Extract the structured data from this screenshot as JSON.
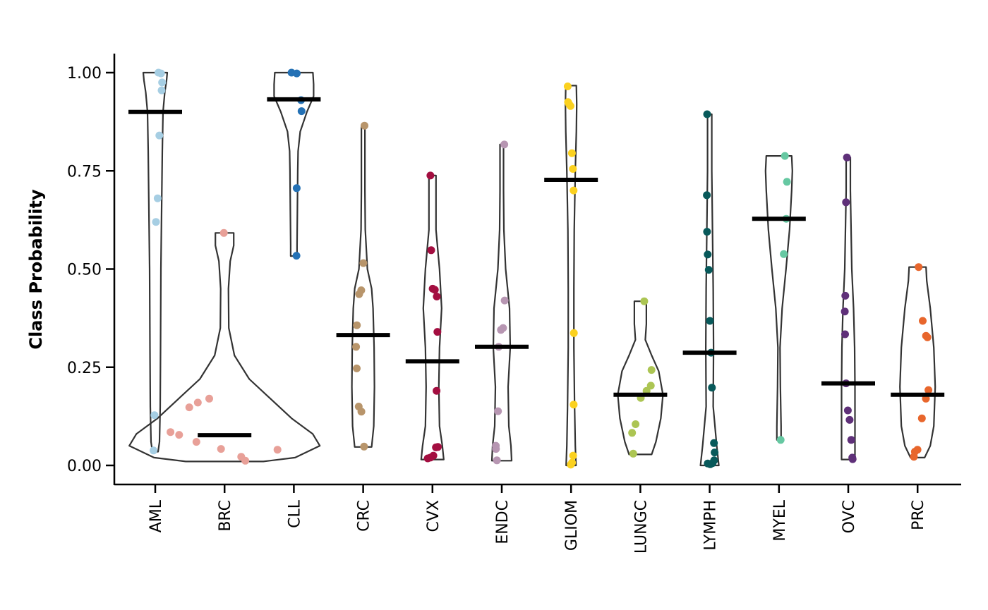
{
  "chart_data": {
    "type": "violin",
    "title": "",
    "xlabel": "",
    "ylabel": "Class Probability",
    "ylim": [
      0,
      1
    ],
    "yticks": [
      "0.00",
      "0.25",
      "0.50",
      "0.75",
      "1.00"
    ],
    "categories": [
      "AML",
      "BRC",
      "CLL",
      "CRC",
      "CVX",
      "ENDC",
      "GLIOM",
      "LUNGC",
      "LYMPH",
      "MYEL",
      "OVC",
      "PRC"
    ],
    "median_color": "#000000",
    "groups": [
      {
        "name": "AML",
        "color": "#a6cee3",
        "median": 0.9,
        "points": [
          1.0,
          0.998,
          0.975,
          0.955,
          0.84,
          0.68,
          0.62,
          0.128,
          0.038
        ],
        "violin": [
          [
            0.035,
            0.4
          ],
          [
            0.06,
            0.6
          ],
          [
            0.15,
            0.7
          ],
          [
            0.3,
            0.75
          ],
          [
            0.5,
            0.8
          ],
          [
            0.65,
            0.9
          ],
          [
            0.8,
            1.0
          ],
          [
            0.9,
            1.1
          ],
          [
            0.95,
            1.35
          ],
          [
            0.98,
            1.6
          ],
          [
            1.0,
            1.7
          ]
        ]
      },
      {
        "name": "BRC",
        "color": "#e8a098",
        "median": 0.077,
        "points": [
          0.592,
          0.17,
          0.16,
          0.148,
          0.085,
          0.078,
          0.06,
          0.042,
          0.022,
          0.012,
          0.04
        ],
        "violin": [
          [
            0.01,
            5.5
          ],
          [
            0.02,
            10
          ],
          [
            0.05,
            13.5
          ],
          [
            0.08,
            12.5
          ],
          [
            0.12,
            9.5
          ],
          [
            0.17,
            6.5
          ],
          [
            0.22,
            3.5
          ],
          [
            0.28,
            1.4
          ],
          [
            0.35,
            0.6
          ],
          [
            0.45,
            0.55
          ],
          [
            0.52,
            0.8
          ],
          [
            0.56,
            1.3
          ],
          [
            0.592,
            1.3
          ]
        ]
      },
      {
        "name": "CLL",
        "color": "#2471b5",
        "median": 0.932,
        "points": [
          1.0,
          0.998,
          0.93,
          0.902,
          0.706,
          0.534
        ],
        "violin": [
          [
            0.533,
            0.45
          ],
          [
            0.56,
            0.45
          ],
          [
            0.65,
            0.5
          ],
          [
            0.75,
            0.55
          ],
          [
            0.8,
            0.6
          ],
          [
            0.85,
            0.9
          ],
          [
            0.9,
            1.85
          ],
          [
            0.94,
            2.8
          ],
          [
            0.97,
            2.8
          ],
          [
            1.0,
            2.7
          ]
        ]
      },
      {
        "name": "CRC",
        "color": "#b8956b",
        "median": 0.332,
        "points": [
          0.865,
          0.515,
          0.446,
          0.436,
          0.357,
          0.302,
          0.247,
          0.15,
          0.137,
          0.048
        ],
        "violin": [
          [
            0.047,
            1.2
          ],
          [
            0.1,
            1.5
          ],
          [
            0.2,
            1.6
          ],
          [
            0.3,
            1.55
          ],
          [
            0.4,
            1.4
          ],
          [
            0.45,
            1.2
          ],
          [
            0.5,
            0.6
          ],
          [
            0.6,
            0.3
          ],
          [
            0.7,
            0.25
          ],
          [
            0.8,
            0.25
          ],
          [
            0.865,
            0.25
          ]
        ]
      },
      {
        "name": "CVX",
        "color": "#a30e40",
        "median": 0.265,
        "points": [
          0.738,
          0.548,
          0.45,
          0.447,
          0.43,
          0.34,
          0.19,
          0.047,
          0.046,
          0.025,
          0.02,
          0.018
        ],
        "violin": [
          [
            0.015,
            1.6
          ],
          [
            0.05,
            1.4
          ],
          [
            0.1,
            1.0
          ],
          [
            0.2,
            0.9
          ],
          [
            0.3,
            1.0
          ],
          [
            0.4,
            1.3
          ],
          [
            0.5,
            1.0
          ],
          [
            0.6,
            0.5
          ],
          [
            0.7,
            0.5
          ],
          [
            0.738,
            0.5
          ]
        ]
      },
      {
        "name": "ENDC",
        "color": "#b796b2",
        "median": 0.302,
        "points": [
          0.817,
          0.42,
          0.35,
          0.345,
          0.302,
          0.138,
          0.05,
          0.042,
          0.013
        ],
        "violin": [
          [
            0.012,
            1.4
          ],
          [
            0.05,
            1.3
          ],
          [
            0.1,
            1.0
          ],
          [
            0.2,
            0.9
          ],
          [
            0.3,
            1.2
          ],
          [
            0.4,
            1.1
          ],
          [
            0.5,
            0.55
          ],
          [
            0.6,
            0.3
          ],
          [
            0.7,
            0.25
          ],
          [
            0.817,
            0.25
          ]
        ]
      },
      {
        "name": "GLIOM",
        "color": "#fbd11f",
        "median": 0.727,
        "points": [
          0.965,
          0.925,
          0.92,
          0.915,
          0.795,
          0.755,
          0.7,
          0.337,
          0.155,
          0.025,
          0.007,
          0.002
        ],
        "violin": [
          [
            0.0,
            0.7
          ],
          [
            0.05,
            0.6
          ],
          [
            0.15,
            0.5
          ],
          [
            0.3,
            0.4
          ],
          [
            0.45,
            0.4
          ],
          [
            0.6,
            0.45
          ],
          [
            0.75,
            0.6
          ],
          [
            0.85,
            0.75
          ],
          [
            0.92,
            0.8
          ],
          [
            0.967,
            0.75
          ]
        ]
      },
      {
        "name": "LUNGC",
        "color": "#acc553",
        "median": 0.18,
        "points": [
          0.418,
          0.243,
          0.203,
          0.19,
          0.172,
          0.105,
          0.083,
          0.03
        ],
        "violin": [
          [
            0.028,
            1.6
          ],
          [
            0.06,
            2.2
          ],
          [
            0.12,
            2.9
          ],
          [
            0.18,
            3.2
          ],
          [
            0.24,
            2.6
          ],
          [
            0.28,
            1.6
          ],
          [
            0.32,
            0.7
          ],
          [
            0.36,
            0.85
          ],
          [
            0.4,
            0.85
          ],
          [
            0.418,
            0.85
          ]
        ]
      },
      {
        "name": "LYMPH",
        "color": "#08595a",
        "median": 0.287,
        "points": [
          0.894,
          0.688,
          0.595,
          0.537,
          0.498,
          0.368,
          0.287,
          0.198,
          0.057,
          0.033,
          0.013,
          0.006,
          0.003,
          0.005
        ],
        "violin": [
          [
            0.0,
            1.3
          ],
          [
            0.05,
            1.0
          ],
          [
            0.15,
            0.5
          ],
          [
            0.3,
            0.55
          ],
          [
            0.45,
            0.5
          ],
          [
            0.6,
            0.4
          ],
          [
            0.75,
            0.3
          ],
          [
            0.894,
            0.3
          ]
        ]
      },
      {
        "name": "MYEL",
        "color": "#66c8a2",
        "median": 0.628,
        "points": [
          0.788,
          0.722,
          0.628,
          0.538,
          0.065
        ],
        "violin": [
          [
            0.065,
            0.3
          ],
          [
            0.1,
            0.3
          ],
          [
            0.2,
            0.2
          ],
          [
            0.3,
            0.15
          ],
          [
            0.4,
            0.45
          ],
          [
            0.5,
            1.0
          ],
          [
            0.6,
            1.5
          ],
          [
            0.7,
            1.8
          ],
          [
            0.75,
            1.9
          ],
          [
            0.788,
            1.8
          ]
        ]
      },
      {
        "name": "OVC",
        "color": "#5f3079",
        "median": 0.209,
        "points": [
          0.784,
          0.67,
          0.432,
          0.392,
          0.334,
          0.209,
          0.14,
          0.116,
          0.065,
          0.02,
          0.016
        ],
        "violin": [
          [
            0.015,
            0.95
          ],
          [
            0.1,
            0.95
          ],
          [
            0.2,
            0.95
          ],
          [
            0.3,
            0.9
          ],
          [
            0.4,
            0.75
          ],
          [
            0.5,
            0.5
          ],
          [
            0.6,
            0.4
          ],
          [
            0.7,
            0.3
          ],
          [
            0.784,
            0.3
          ]
        ]
      },
      {
        "name": "PRC",
        "color": "#e8662c",
        "median": 0.18,
        "points": [
          0.505,
          0.368,
          0.33,
          0.326,
          0.192,
          0.17,
          0.12,
          0.04,
          0.035,
          0.022
        ],
        "violin": [
          [
            0.02,
            1.0
          ],
          [
            0.05,
            1.8
          ],
          [
            0.1,
            2.3
          ],
          [
            0.2,
            2.5
          ],
          [
            0.3,
            2.3
          ],
          [
            0.4,
            1.8
          ],
          [
            0.47,
            1.3
          ],
          [
            0.505,
            1.2
          ]
        ]
      }
    ]
  }
}
